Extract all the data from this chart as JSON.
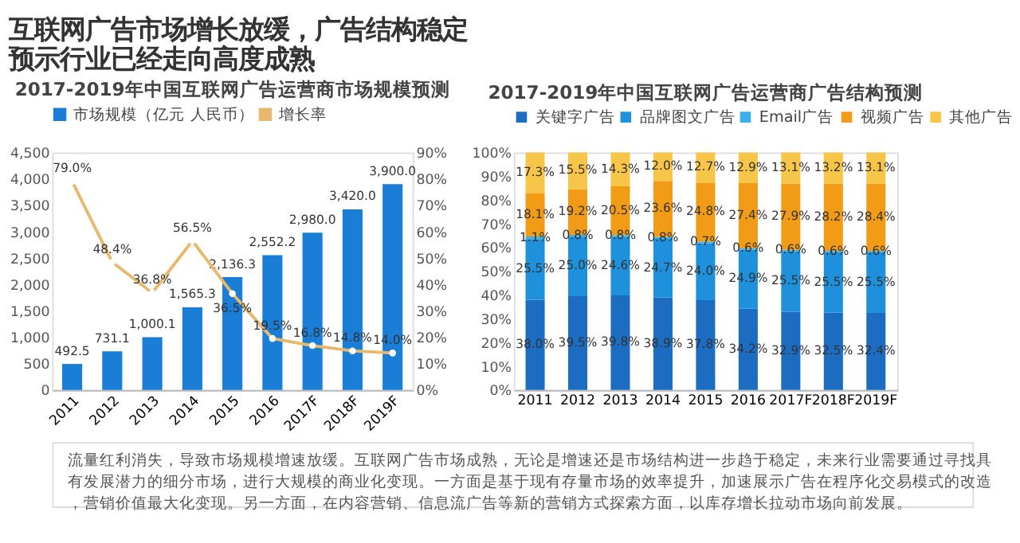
{
  "chart_data": [
    {
      "type": "other",
      "title": "互联网广告市场增长放缓，广告结构稳定预示行业已经走向高度成熟",
      "annotations": [
        "流量红利消失，导致市场规模增速放缓。互联网广告市场成熟，无论是增速还是市场结构进一步趋于稳定，未来行业需要通过寻找具有发展潜力的细分市场，进行大规模的商业化变现。一方面是基于现有存量市场的效率提升，加速展示广告在程序化交易模式的改造，营销价值最大化变现。另一方面，在内容营销、信息流广告等新的营销方式探索方面，以库存增长拉动市场向前发展。"
      ]
    },
    {
      "type": "bar",
      "title": "2017-2019年中国互联网广告运营商市场规模预测",
      "categories": [
        "2011",
        "2012",
        "2013",
        "2014",
        "2015",
        "2016",
        "2017F",
        "2018F",
        "2019F"
      ],
      "series": [
        {
          "name": "市场规模（亿元 人民币）",
          "type": "bar",
          "color": "#1a7dd6",
          "values": [
            492.5,
            731.1,
            1000.1,
            1565.3,
            2136.3,
            2552.2,
            2980.0,
            3420.0,
            3900.0
          ],
          "value_labels": [
            "492.5",
            "731.1",
            "1,000.1",
            "1,565.3",
            "2,136.3",
            "2,552.2",
            "2,980.0",
            "3,420.0",
            "3,900.0"
          ]
        },
        {
          "name": "增长率",
          "type": "line",
          "axis": "y2",
          "color": "#e8b86d",
          "values": [
            79.0,
            48.4,
            36.8,
            56.5,
            36.5,
            19.5,
            16.8,
            14.8,
            14.0
          ],
          "value_labels": [
            "79.0%",
            "48.4%",
            "36.8%",
            "56.5%",
            "36.5%",
            "19.5%",
            "16.8%",
            "14.8%",
            "14.0%"
          ]
        }
      ],
      "ylim": [
        0,
        4500
      ],
      "yticks": [
        0,
        500,
        {
          "value": 1000,
          "label": "1,000"
        },
        {
          "value": 1500,
          "label": "1,500"
        },
        {
          "value": 2000,
          "label": "2,000"
        },
        {
          "value": 2500,
          "label": "2,500"
        },
        {
          "value": 3000,
          "label": "3,000"
        },
        {
          "value": 3500,
          "label": "3,500"
        },
        {
          "value": 4000,
          "label": "4,000"
        },
        {
          "value": 4500,
          "label": "4,500"
        }
      ],
      "y2lim": [
        0,
        90
      ],
      "y2ticks": [
        {
          "value": 0,
          "label": "0%"
        },
        {
          "value": 10,
          "label": "10%"
        },
        {
          "value": 20,
          "label": "20%"
        },
        {
          "value": 30,
          "label": "30%"
        },
        {
          "value": 40,
          "label": "40%"
        },
        {
          "value": 50,
          "label": "50%"
        },
        {
          "value": 60,
          "label": "60%"
        },
        {
          "value": 70,
          "label": "70%"
        },
        {
          "value": 80,
          "label": "80%"
        },
        {
          "value": 90,
          "label": "90%"
        }
      ],
      "legend": "top",
      "marker": "circle",
      "grid": false
    },
    {
      "type": "bar",
      "stacked": true,
      "title": "2017-2019年中国互联网广告运营商广告结构预测",
      "categories": [
        "2011",
        "2012",
        "2013",
        "2014",
        "2015",
        "2016",
        "2017F",
        "2018F",
        "2019F"
      ],
      "series": [
        {
          "name": "关键字广告",
          "color": "#1c6cc1",
          "values": [
            38.0,
            39.5,
            39.8,
            38.9,
            37.8,
            34.2,
            32.9,
            32.5,
            32.4
          ],
          "value_labels": [
            "38.0%",
            "39.5%",
            "39.8%",
            "38.9%",
            "37.8%",
            "34.2%",
            "32.9%",
            "32.5%",
            "32.4%"
          ]
        },
        {
          "name": "品牌图文广告",
          "color": "#1e90dc",
          "values": [
            25.5,
            25.0,
            24.6,
            24.7,
            24.0,
            24.9,
            25.5,
            25.5,
            25.5
          ],
          "value_labels": [
            "25.5%",
            "25.0%",
            "24.6%",
            "24.7%",
            "24.0%",
            "24.9%",
            "25.5%",
            "25.5%",
            "25.5%"
          ]
        },
        {
          "name": "Email广告",
          "color": "#3bb0ea",
          "values": [
            1.1,
            0.8,
            0.8,
            0.8,
            0.7,
            0.6,
            0.6,
            0.6,
            0.6
          ],
          "value_labels": [
            "1.1%",
            "0.8%",
            "0.8%",
            "0.8%",
            "0.7%",
            "0.6%",
            "0.6%",
            "0.6%",
            "0.6%"
          ]
        },
        {
          "name": "视频广告",
          "color": "#f29b16",
          "values": [
            18.1,
            19.2,
            20.5,
            23.6,
            24.8,
            27.4,
            27.9,
            28.2,
            28.4
          ],
          "value_labels": [
            "18.1%",
            "19.2%",
            "20.5%",
            "23.6%",
            "24.8%",
            "27.4%",
            "27.9%",
            "28.2%",
            "28.4%"
          ]
        },
        {
          "name": "其他广告",
          "color": "#f7c548",
          "values": [
            17.3,
            15.5,
            14.3,
            12.0,
            12.7,
            12.9,
            13.1,
            13.2,
            13.1
          ],
          "value_labels": [
            "17.3%",
            "15.5%",
            "14.3%",
            "12.0%",
            "12.7%",
            "12.9%",
            "13.1%",
            "13.2%",
            "13.1%"
          ]
        }
      ],
      "ylim": [
        0,
        100
      ],
      "yticks": [
        {
          "value": 0,
          "label": "0%"
        },
        {
          "value": 10,
          "label": "10%"
        },
        {
          "value": 20,
          "label": "20%"
        },
        {
          "value": 30,
          "label": "30%"
        },
        {
          "value": 40,
          "label": "40%"
        },
        {
          "value": 50,
          "label": "50%"
        },
        {
          "value": 60,
          "label": "60%"
        },
        {
          "value": 70,
          "label": "70%"
        },
        {
          "value": 80,
          "label": "80%"
        },
        {
          "value": 90,
          "label": "90%"
        },
        {
          "value": 100,
          "label": "100%"
        }
      ],
      "legend": "top",
      "grid": false
    }
  ]
}
